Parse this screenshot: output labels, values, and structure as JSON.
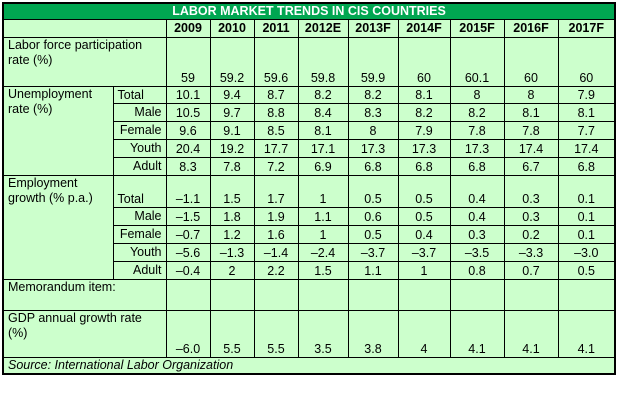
{
  "title": "LABOR MARKET TRENDS IN CIS COUNTRIES",
  "years": [
    "2009",
    "2010",
    "2011",
    "2012E",
    "2013F",
    "2014F",
    "2015F",
    "2016F",
    "2017F"
  ],
  "rows": {
    "lfpr": {
      "label": "Labor force participation rate (%)",
      "values": [
        "59",
        "59.2",
        "59.6",
        "59.8",
        "59.9",
        "60",
        "60.1",
        "60",
        "60"
      ]
    },
    "unemp_label": "Unemployment rate (%)",
    "unemp": [
      {
        "sub": "Total",
        "values": [
          "10.1",
          "9.4",
          "8.7",
          "8.2",
          "8.2",
          "8.1",
          "8",
          "8",
          "7.9"
        ]
      },
      {
        "sub": "Male",
        "values": [
          "10.5",
          "9.7",
          "8.8",
          "8.4",
          "8.3",
          "8.2",
          "8.2",
          "8.1",
          "8.1"
        ]
      },
      {
        "sub": "Female",
        "values": [
          "9.6",
          "9.1",
          "8.5",
          "8.1",
          "8",
          "7.9",
          "7.8",
          "7.8",
          "7.7"
        ]
      },
      {
        "sub": "Youth",
        "values": [
          "20.4",
          "19.2",
          "17.7",
          "17.1",
          "17.3",
          "17.3",
          "17.3",
          "17.4",
          "17.4"
        ]
      },
      {
        "sub": "Adult",
        "values": [
          "8.3",
          "7.8",
          "7.2",
          "6.9",
          "6.8",
          "6.8",
          "6.8",
          "6.7",
          "6.8"
        ]
      }
    ],
    "emp_label": "Employment growth (% p.a.)",
    "emp": [
      {
        "sub": "Total",
        "values": [
          "–1.1",
          "1.5",
          "1.7",
          "1",
          "0.5",
          "0.5",
          "0.4",
          "0.3",
          "0.1"
        ]
      },
      {
        "sub": "Male",
        "values": [
          "–1.5",
          "1.8",
          "1.9",
          "1.1",
          "0.6",
          "0.5",
          "0.4",
          "0.3",
          "0.1"
        ]
      },
      {
        "sub": "Female",
        "values": [
          "–0.7",
          "1.2",
          "1.6",
          "1",
          "0.5",
          "0.4",
          "0.3",
          "0.2",
          "0.1"
        ]
      },
      {
        "sub": "Youth",
        "values": [
          "–5.6",
          "–1.3",
          "–1.4",
          "–2.4",
          "–3.7",
          "–3.7",
          "–3.5",
          "–3.3",
          "–3.0"
        ]
      },
      {
        "sub": "Adult",
        "values": [
          "–0.4",
          "2",
          "2.2",
          "1.5",
          "1.1",
          "1",
          "0.8",
          "0.7",
          "0.5"
        ]
      }
    ],
    "memo_label": "Memorandum item:",
    "gdp": {
      "label": "GDP annual growth rate (%)",
      "values": [
        "–6.0",
        "5.5",
        "5.5",
        "3.5",
        "3.8",
        "4",
        "4.1",
        "4.1",
        "4.1"
      ]
    }
  },
  "source": "Source: International Labor Organization"
}
